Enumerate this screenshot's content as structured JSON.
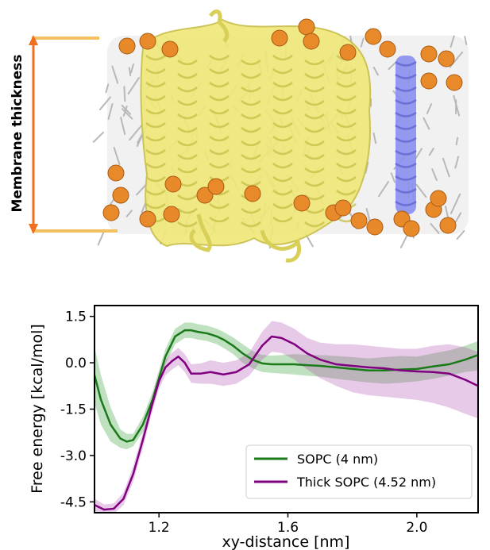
{
  "illustration": {
    "label": "Membrane thickness",
    "colors": {
      "protein": "#f0e87a",
      "protein_edge": "#c9c04a",
      "helix_highlight": "#8a8ff0",
      "lipid_tails": "#b8b8b8",
      "headgroups": "#e8892a",
      "arrow": "#f07020",
      "boundary_lines": "#f5c060"
    }
  },
  "chart_data": {
    "type": "line",
    "xlabel": "xy-distance [nm]",
    "ylabel": "Free energy [kcal/mol]",
    "xlim": [
      1.0,
      2.19
    ],
    "ylim": [
      -4.85,
      1.85
    ],
    "xticks": [
      1.2,
      1.6,
      2.0
    ],
    "xtick_labels": [
      "1.2",
      "1.6",
      "2.0"
    ],
    "yticks": [
      1.5,
      0.0,
      -1.5,
      -3.0,
      -4.5
    ],
    "ytick_labels": [
      "1.5",
      "0.0",
      "-1.5",
      "-3.0",
      "-4.5"
    ],
    "grid": false,
    "legend_position": "lower-right",
    "series": [
      {
        "name": "SOPC (4 nm)",
        "color": "#1a7a1a",
        "band_color": "#2e9a2e",
        "x": [
          1.0,
          1.02,
          1.05,
          1.08,
          1.1,
          1.12,
          1.15,
          1.18,
          1.2,
          1.22,
          1.25,
          1.28,
          1.3,
          1.32,
          1.35,
          1.38,
          1.4,
          1.43,
          1.46,
          1.49,
          1.52,
          1.55,
          1.58,
          1.62,
          1.66,
          1.7,
          1.75,
          1.8,
          1.85,
          1.9,
          1.95,
          2.0,
          2.05,
          2.1,
          2.15,
          2.19
        ],
        "values": [
          -0.4,
          -1.2,
          -2.0,
          -2.45,
          -2.55,
          -2.5,
          -2.0,
          -1.2,
          -0.5,
          0.2,
          0.85,
          1.05,
          1.05,
          1.0,
          0.95,
          0.85,
          0.75,
          0.55,
          0.3,
          0.1,
          -0.02,
          -0.05,
          -0.05,
          -0.05,
          -0.08,
          -0.1,
          -0.15,
          -0.2,
          -0.25,
          -0.25,
          -0.22,
          -0.2,
          -0.12,
          -0.05,
          0.1,
          0.25
        ],
        "lower": [
          -1.3,
          -2.0,
          -2.55,
          -2.75,
          -2.8,
          -2.7,
          -2.25,
          -1.45,
          -0.75,
          -0.05,
          0.6,
          0.8,
          0.8,
          0.75,
          0.7,
          0.6,
          0.48,
          0.28,
          0.0,
          -0.18,
          -0.3,
          -0.33,
          -0.35,
          -0.38,
          -0.42,
          -0.45,
          -0.52,
          -0.58,
          -0.64,
          -0.68,
          -0.65,
          -0.6,
          -0.52,
          -0.42,
          -0.3,
          -0.25
        ],
        "upper": [
          0.5,
          -0.4,
          -1.45,
          -2.15,
          -2.3,
          -2.3,
          -1.75,
          -0.95,
          -0.25,
          0.45,
          1.1,
          1.3,
          1.3,
          1.25,
          1.2,
          1.1,
          1.0,
          0.82,
          0.6,
          0.38,
          0.26,
          0.23,
          0.25,
          0.28,
          0.26,
          0.25,
          0.22,
          0.18,
          0.14,
          0.18,
          0.22,
          0.2,
          0.3,
          0.4,
          0.55,
          0.7
        ]
      },
      {
        "name": "Thick SOPC (4.52 nm)",
        "color": "#800080",
        "band_color": "#b050b0",
        "x": [
          1.0,
          1.03,
          1.06,
          1.09,
          1.12,
          1.15,
          1.18,
          1.2,
          1.22,
          1.24,
          1.26,
          1.28,
          1.3,
          1.33,
          1.36,
          1.4,
          1.44,
          1.48,
          1.52,
          1.55,
          1.58,
          1.62,
          1.66,
          1.7,
          1.75,
          1.8,
          1.85,
          1.9,
          1.95,
          2.0,
          2.05,
          2.1,
          2.15,
          2.19
        ],
        "values": [
          -4.6,
          -4.75,
          -4.72,
          -4.4,
          -3.6,
          -2.5,
          -1.3,
          -0.6,
          -0.15,
          0.05,
          0.2,
          0.0,
          -0.35,
          -0.35,
          -0.3,
          -0.38,
          -0.3,
          -0.05,
          0.55,
          0.85,
          0.8,
          0.6,
          0.3,
          0.1,
          -0.05,
          -0.1,
          -0.15,
          -0.18,
          -0.25,
          -0.28,
          -0.3,
          -0.35,
          -0.55,
          -0.75
        ],
        "lower": [
          -4.8,
          -4.9,
          -4.88,
          -4.6,
          -3.85,
          -2.75,
          -1.55,
          -0.85,
          -0.4,
          -0.22,
          -0.08,
          -0.3,
          -0.65,
          -0.68,
          -0.68,
          -0.75,
          -0.68,
          -0.42,
          0.1,
          0.35,
          0.32,
          0.1,
          -0.22,
          -0.5,
          -0.75,
          -0.95,
          -1.05,
          -1.1,
          -1.15,
          -1.2,
          -1.3,
          -1.45,
          -1.65,
          -1.8
        ],
        "upper": [
          -4.4,
          -4.58,
          -4.55,
          -4.2,
          -3.35,
          -2.25,
          -1.05,
          -0.35,
          0.1,
          0.32,
          0.48,
          0.28,
          -0.05,
          -0.02,
          0.08,
          0.0,
          0.08,
          0.32,
          1.0,
          1.35,
          1.3,
          1.1,
          0.8,
          0.65,
          0.6,
          0.6,
          0.55,
          0.5,
          0.45,
          0.45,
          0.55,
          0.6,
          0.5,
          0.35
        ]
      }
    ]
  }
}
